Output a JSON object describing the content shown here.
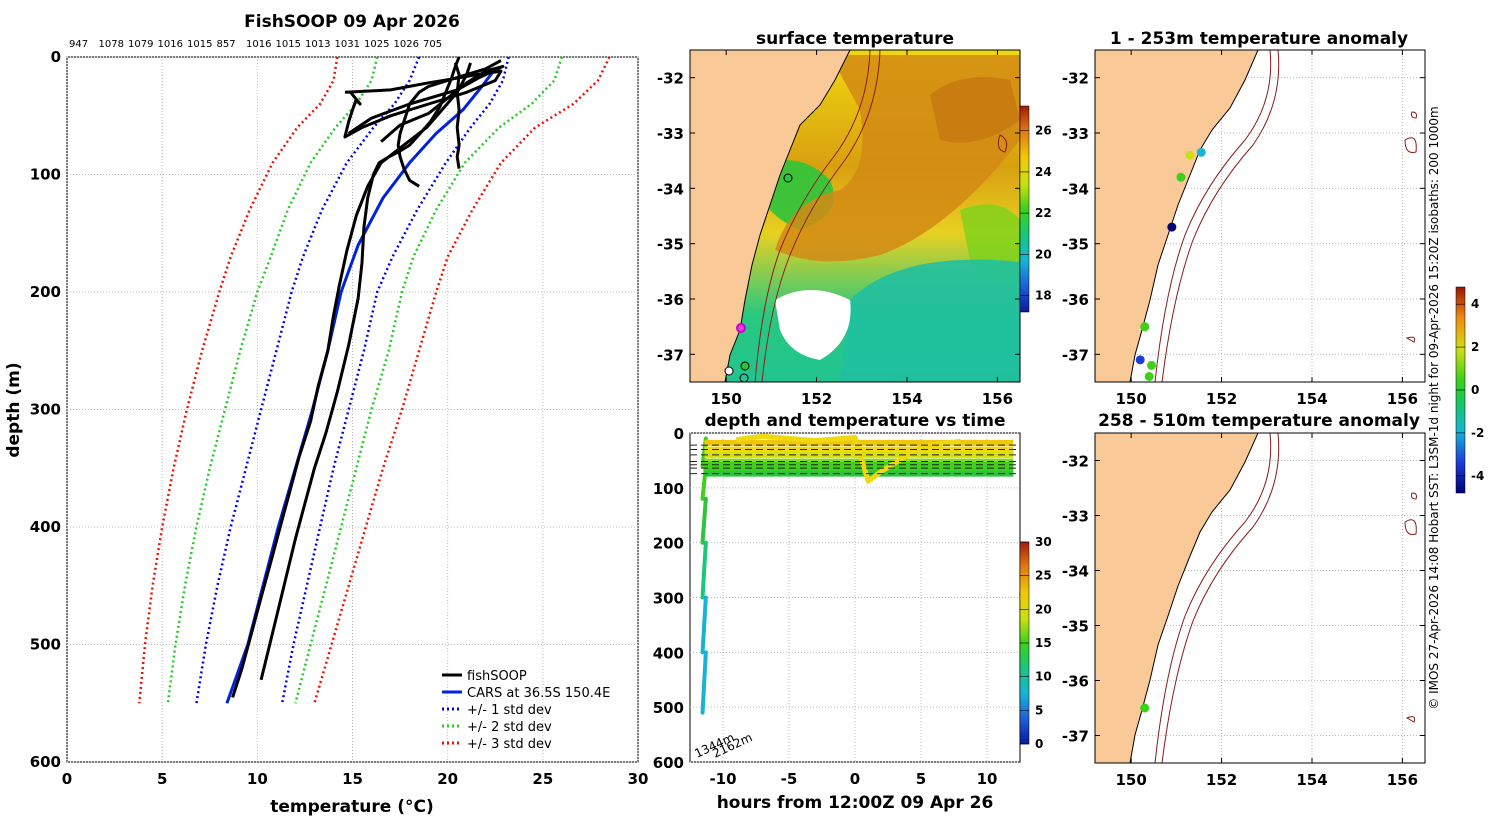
{
  "profile": {
    "title": "FishSOOP 09 Apr 2026",
    "top_labels": [
      "947",
      "1078",
      "1079",
      "1016",
      "1015",
      "857",
      "1016",
      "1015",
      "1013",
      "1031",
      "1025",
      "1026",
      "705"
    ],
    "xlabel": "temperature",
    "xlabel_unit": "(°C)",
    "ylabel": "depth (m)",
    "legend": [
      "fishSOOP",
      "CARS at 36.5S 150.4E",
      "+/- 1 std dev",
      "+/- 2 std dev",
      "+/- 3 std dev"
    ]
  },
  "sst_panel": {
    "title": "surface temperature"
  },
  "time_panel": {
    "title": "depth and temperature vs time",
    "xlabel": "hours from 12:00Z 09 Apr 26",
    "annotations": [
      "1344m",
      "2162m"
    ]
  },
  "anom1_panel": {
    "title": "1 - 253m temperature anomaly"
  },
  "anom2_panel": {
    "title": "258 - 510m temperature anomaly"
  },
  "side_note": "© IMOS 27-Apr-2026 14:08 Hobart SST: L3SM-1d night for 09-Apr-2026 15:20Z isobaths: 200  1000m",
  "colors": {
    "land": "#f9c997",
    "cars": "#0022dd",
    "std1": "#0000ee",
    "std2": "#22cc22",
    "std3": "#ee1100"
  },
  "chart_data": [
    {
      "type": "line",
      "title": "FishSOOP 09 Apr 2026",
      "xlabel": "temperature (°C)",
      "ylabel": "depth (m)",
      "xlim": [
        0,
        30
      ],
      "ylim": [
        600,
        0
      ],
      "xticks": [
        0,
        5,
        10,
        15,
        20,
        25,
        30
      ],
      "yticks": [
        0,
        100,
        200,
        300,
        400,
        500,
        600
      ],
      "series": [
        {
          "name": "CARS at 36.5S 150.4E",
          "color": "#0022dd",
          "style": "solid",
          "t": [
            22.5,
            21.8,
            20.8,
            19.4,
            18.0,
            16.6,
            15.3,
            14.4,
            13.7,
            12.9,
            12.0,
            11.1,
            10.3,
            9.5,
            8.4
          ],
          "z": [
            10,
            25,
            45,
            65,
            90,
            120,
            160,
            200,
            250,
            300,
            350,
            400,
            450,
            500,
            550
          ]
        },
        {
          "name": "+/- 1 std dev",
          "color": "#0000ee",
          "style": "dotted",
          "t": [
            23.2,
            22.9,
            22.2,
            21.2,
            19.9,
            18.4,
            17.1,
            16.3,
            15.6,
            14.8,
            14.0,
            13.3,
            12.6,
            11.9,
            11.3
          ],
          "z": [
            0,
            20,
            40,
            60,
            90,
            130,
            170,
            200,
            250,
            300,
            350,
            400,
            450,
            500,
            550
          ]
        },
        {
          "name": "+/- 1 std dev",
          "color": "#0000ee",
          "style": "dotted",
          "t": [
            18.5,
            18.0,
            17.2,
            16.1,
            14.7,
            13.4,
            12.4,
            11.8,
            11.0,
            10.2,
            9.4,
            8.6,
            7.9,
            7.3,
            6.8
          ],
          "z": [
            0,
            20,
            40,
            60,
            90,
            130,
            170,
            200,
            250,
            300,
            350,
            400,
            450,
            500,
            550
          ]
        },
        {
          "name": "+/- 2 std dev",
          "color": "#22cc22",
          "style": "dotted",
          "t": [
            26.0,
            25.6,
            24.4,
            22.7,
            20.9,
            19.4,
            18.2,
            17.6,
            16.9,
            16.0,
            15.2,
            14.4,
            13.6,
            12.8,
            12.0
          ],
          "z": [
            0,
            20,
            40,
            60,
            90,
            130,
            170,
            200,
            250,
            300,
            350,
            400,
            450,
            500,
            550
          ]
        },
        {
          "name": "+/- 2 std dev",
          "color": "#22cc22",
          "style": "dotted",
          "t": [
            16.3,
            16.0,
            15.2,
            14.1,
            12.8,
            11.6,
            10.7,
            10.0,
            9.1,
            8.3,
            7.5,
            6.8,
            6.2,
            5.7,
            5.3
          ],
          "z": [
            0,
            20,
            40,
            60,
            90,
            130,
            170,
            200,
            250,
            300,
            350,
            400,
            450,
            500,
            550
          ]
        },
        {
          "name": "+/- 3 std dev",
          "color": "#ee1100",
          "style": "dotted",
          "t": [
            28.5,
            27.9,
            26.6,
            24.6,
            22.8,
            21.3,
            20.0,
            19.4,
            18.5,
            17.6,
            16.6,
            15.7,
            14.8,
            13.9,
            13.0
          ],
          "z": [
            0,
            20,
            40,
            60,
            90,
            130,
            170,
            200,
            250,
            300,
            350,
            400,
            450,
            500,
            550
          ]
        },
        {
          "name": "+/- 3 std dev",
          "color": "#ee1100",
          "style": "dotted",
          "t": [
            14.2,
            14.0,
            13.3,
            12.1,
            10.8,
            9.6,
            8.6,
            8.0,
            7.1,
            6.3,
            5.6,
            5.0,
            4.5,
            4.1,
            3.8
          ],
          "z": [
            0,
            20,
            40,
            60,
            90,
            130,
            170,
            200,
            250,
            300,
            350,
            400,
            450,
            500,
            550
          ]
        },
        {
          "name": "fishSOOP",
          "color": "#000000",
          "style": "solid",
          "t": [
            21.2,
            21.0,
            20.5,
            19.7,
            18.9,
            17.7,
            16.5,
            15.8,
            15.2,
            14.7,
            14.3,
            14.0,
            13.7,
            13.2,
            12.8,
            12.2,
            11.7,
            11.2,
            10.7,
            10.2,
            9.7,
            9.2,
            8.7
          ],
          "z": [
            5,
            15,
            30,
            45,
            60,
            75,
            90,
            110,
            135,
            165,
            195,
            220,
            250,
            280,
            310,
            340,
            370,
            400,
            430,
            460,
            490,
            520,
            545
          ]
        },
        {
          "name": "fishSOOP",
          "color": "#000000",
          "style": "solid",
          "t": [
            20.6,
            20.4,
            20.2,
            19.9,
            19.6,
            19.1,
            18.5,
            18.0,
            17.5,
            16.9,
            16.4,
            16.1,
            15.8,
            15.6,
            15.5,
            15.3,
            14.8,
            14.2,
            13.6,
            13.0,
            12.5,
            12.0,
            11.4,
            10.8,
            10.2
          ],
          "z": [
            0,
            8,
            18,
            30,
            42,
            55,
            66,
            75,
            80,
            85,
            90,
            100,
            120,
            145,
            175,
            205,
            245,
            285,
            320,
            350,
            380,
            410,
            450,
            490,
            530
          ]
        },
        {
          "name": "fishSOOP",
          "color": "#000000",
          "style": "solid",
          "t": [
            22.8,
            22.0,
            21.0,
            20.0,
            19.0,
            18.5,
            18.0,
            17.7,
            17.5,
            17.4,
            17.5,
            17.7,
            18.0,
            18.5
          ],
          "z": [
            3,
            10,
            15,
            20,
            25,
            30,
            40,
            55,
            65,
            75,
            85,
            95,
            105,
            110
          ]
        },
        {
          "name": "fishSOOP",
          "color": "#000000",
          "style": "solid",
          "t": [
            14.6,
            17.0,
            19.0,
            20.5,
            21.5,
            22.8,
            22.5,
            21.0,
            19.0,
            17.0,
            15.5,
            14.6,
            14.8,
            15.0,
            15.2,
            15.4,
            14.9
          ],
          "z": [
            30,
            28,
            22,
            18,
            15,
            12,
            20,
            30,
            40,
            50,
            60,
            68,
            55,
            45,
            36,
            40,
            30
          ]
        },
        {
          "name": "fishSOOP",
          "color": "#000000",
          "style": "solid",
          "t": [
            14.8,
            16.0,
            18.0,
            20.5,
            21.6,
            22.9,
            22.0,
            21.0,
            20.0,
            19.0,
            17.5,
            16.5
          ],
          "z": [
            65,
            52,
            40,
            28,
            18,
            8,
            12,
            22,
            35,
            48,
            58,
            72
          ]
        },
        {
          "name": "fishSOOP",
          "color": "#000000",
          "style": "solid",
          "t": [
            20.4,
            20.6,
            20.5,
            20.6,
            20.5,
            20.6,
            20.5,
            20.6
          ],
          "z": [
            5,
            15,
            30,
            45,
            60,
            75,
            85,
            95
          ]
        }
      ]
    },
    {
      "type": "heatmap",
      "title": "surface temperature",
      "xlim": [
        149.2,
        156.5
      ],
      "ylim": [
        -37.5,
        -31.5
      ],
      "xticks": [
        150,
        152,
        154,
        156
      ],
      "yticks": [
        -32,
        -33,
        -34,
        -35,
        -36,
        -37
      ],
      "colorbar_ticks": [
        18,
        20,
        22,
        24,
        26
      ]
    },
    {
      "type": "scatter",
      "title": "depth and temperature vs time",
      "xlabel": "hours from 12:00Z 09 Apr 26",
      "xlim": [
        -12.5,
        12.5
      ],
      "ylim": [
        600,
        0
      ],
      "xticks": [
        -10,
        -5,
        0,
        5,
        10
      ],
      "xtick_labels": [
        "-10",
        "-5",
        "0",
        "5",
        "10"
      ],
      "yticks": [
        0,
        100,
        200,
        300,
        400,
        500,
        600
      ],
      "colorbar_ticks": [
        0,
        5,
        10,
        15,
        20,
        25,
        30
      ],
      "reference_depths": [
        22,
        30,
        40,
        52,
        58,
        64,
        74
      ]
    },
    {
      "type": "scatter",
      "title": "1 - 253m temperature anomaly",
      "xlim": [
        149.2,
        156.5
      ],
      "ylim": [
        -37.5,
        -31.5
      ],
      "xticks": [
        150,
        152,
        154,
        156
      ],
      "yticks": [
        -32,
        -33,
        -34,
        -35,
        -36,
        -37
      ],
      "colorbar_ticks": [
        -4,
        -2,
        0,
        2,
        4
      ],
      "points": [
        {
          "lon": 150.3,
          "lat": -36.5,
          "anom": 1.2
        },
        {
          "lon": 150.9,
          "lat": -34.7,
          "anom": -3.5
        },
        {
          "lon": 151.1,
          "lat": -33.8,
          "anom": 0.4
        },
        {
          "lon": 151.3,
          "lat": -33.4,
          "anom": 1.8
        },
        {
          "lon": 151.55,
          "lat": -33.35,
          "anom": -1.5
        },
        {
          "lon": 150.2,
          "lat": -37.1,
          "anom": -1.7
        },
        {
          "lon": 150.45,
          "lat": -37.2,
          "anom": 1.2
        },
        {
          "lon": 150.4,
          "lat": -37.4,
          "anom": 0.6
        }
      ]
    },
    {
      "type": "scatter",
      "title": "258 - 510m temperature anomaly",
      "xlim": [
        149.2,
        156.5
      ],
      "ylim": [
        -37.5,
        -31.5
      ],
      "xticks": [
        150,
        152,
        154,
        156
      ],
      "yticks": [
        -32,
        -33,
        -34,
        -35,
        -36,
        -37
      ],
      "points": [
        {
          "lon": 150.3,
          "lat": -36.5,
          "anom": 0.4
        }
      ]
    }
  ]
}
